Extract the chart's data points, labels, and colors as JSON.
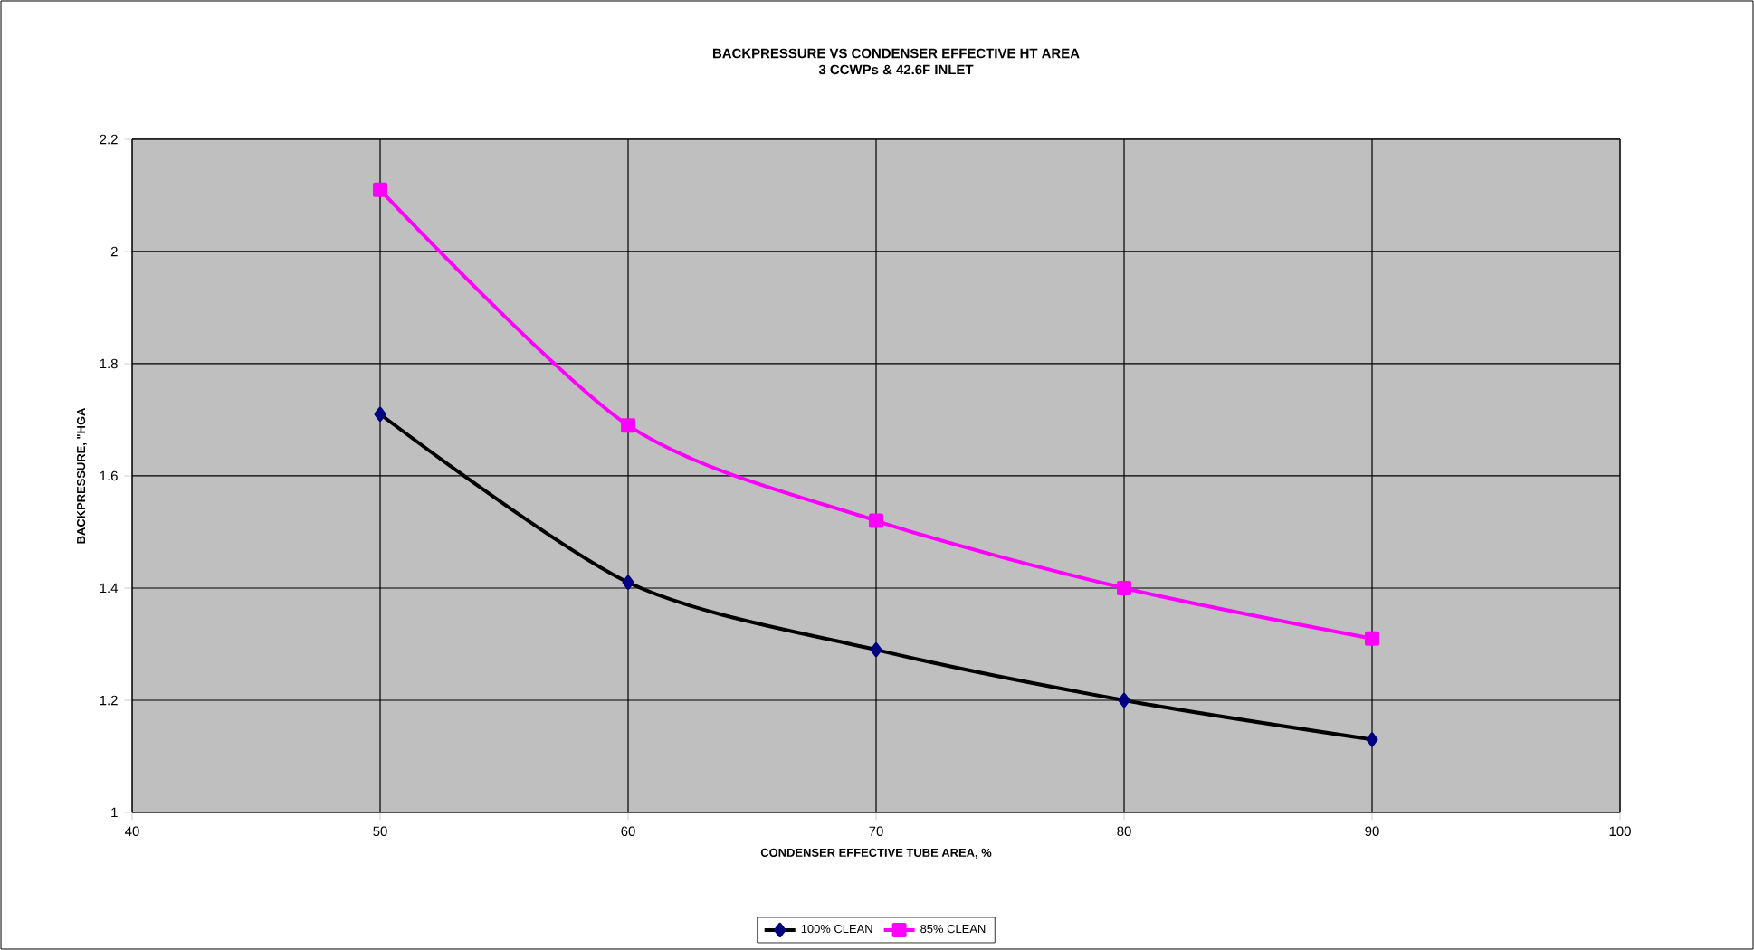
{
  "chart_data": {
    "type": "line",
    "title": "BACKPRESSURE VS CONDENSER EFFECTIVE HT AREA",
    "subtitle": "3 CCWPs & 42.6F INLET",
    "xlabel": "CONDENSER EFFECTIVE TUBE AREA, %",
    "ylabel": "BACKPRESSURE, \"HGA",
    "x": [
      50,
      60,
      70,
      80,
      90
    ],
    "series": [
      {
        "name": "100% CLEAN",
        "color": "#000080",
        "marker": "diamond",
        "values": [
          1.71,
          1.41,
          1.29,
          1.2,
          1.13
        ]
      },
      {
        "name": "85% CLEAN",
        "color": "#ff00ff",
        "marker": "square",
        "values": [
          2.11,
          1.69,
          1.52,
          1.4,
          1.31
        ]
      }
    ],
    "xlim": [
      40,
      100
    ],
    "xticks": [
      40,
      50,
      60,
      70,
      80,
      90,
      100
    ],
    "ylim": [
      1,
      2.2
    ],
    "yticks": [
      1,
      1.2,
      1.4,
      1.6,
      1.8,
      2,
      2.2
    ],
    "grid": true,
    "legend": "bottom"
  }
}
